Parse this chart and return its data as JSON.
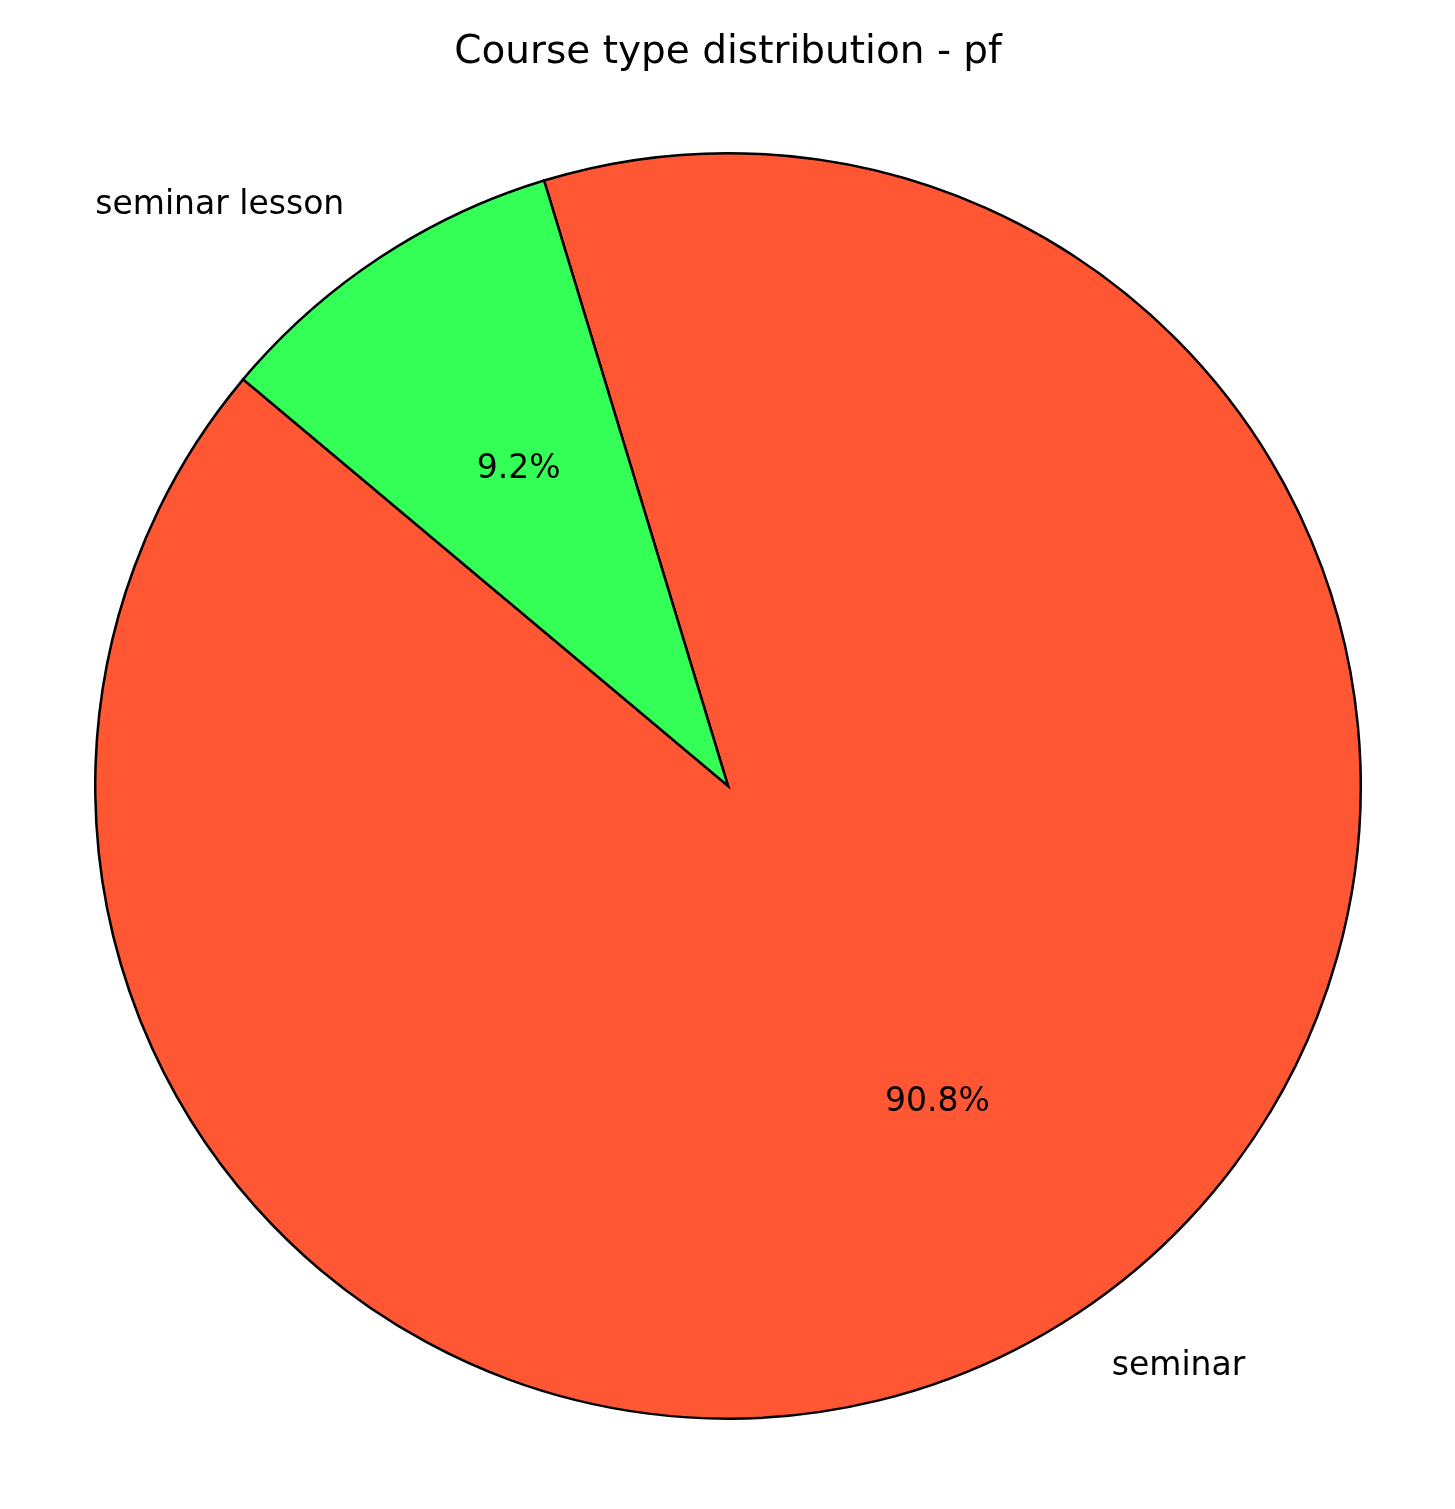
{
  "chart_data": {
    "type": "pie",
    "title": "Course type distribution - pf",
    "categories": [
      "seminar",
      "seminar lesson"
    ],
    "values": [
      90.8,
      9.2
    ],
    "colors": [
      "#ff5733",
      "#33ff57"
    ],
    "value_labels": [
      "90.8%",
      "9.2%"
    ]
  }
}
